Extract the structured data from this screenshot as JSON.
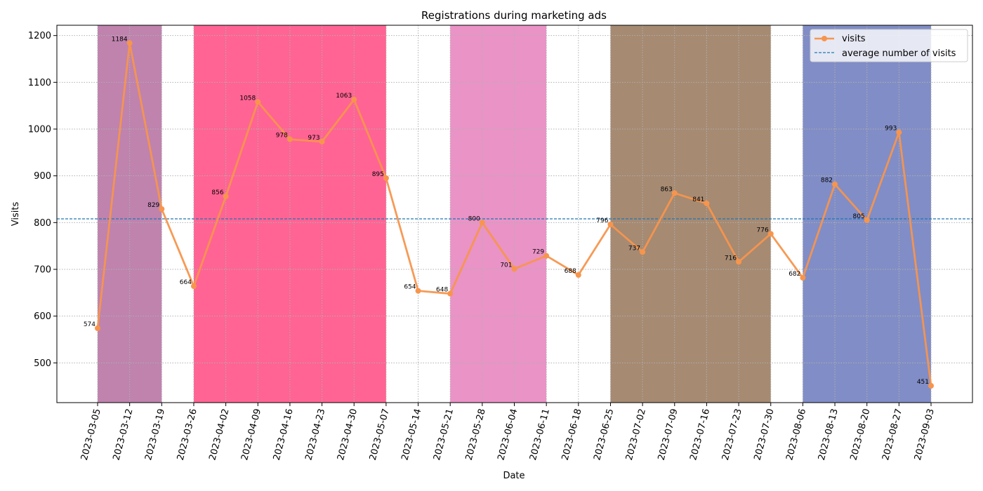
{
  "chart_data": {
    "type": "line",
    "title": "Registrations during marketing ads",
    "xlabel": "Date",
    "ylabel": "Visits",
    "x": [
      "2023-03-05",
      "2023-03-12",
      "2023-03-19",
      "2023-03-26",
      "2023-04-02",
      "2023-04-09",
      "2023-04-16",
      "2023-04-23",
      "2023-04-30",
      "2023-05-07",
      "2023-05-14",
      "2023-05-21",
      "2023-05-28",
      "2023-06-04",
      "2023-06-11",
      "2023-06-18",
      "2023-06-25",
      "2023-07-02",
      "2023-07-09",
      "2023-07-16",
      "2023-07-23",
      "2023-07-30",
      "2023-08-06",
      "2023-08-13",
      "2023-08-20",
      "2023-08-27",
      "2023-09-03"
    ],
    "series": [
      {
        "name": "visits",
        "color": "#f7954d",
        "values": [
          574,
          1184,
          829,
          664,
          856,
          1058,
          978,
          973,
          1063,
          895,
          654,
          648,
          800,
          701,
          729,
          688,
          796,
          737,
          863,
          841,
          716,
          776,
          682,
          882,
          805,
          993,
          451
        ]
      }
    ],
    "average": {
      "name": "average number of visits",
      "value": 808,
      "color": "#1f77b4"
    },
    "ylim": [
      415,
      1222
    ],
    "yticks": [
      500,
      600,
      700,
      800,
      900,
      1000,
      1100,
      1200
    ],
    "grid": true,
    "legend_position": "top-right",
    "shaded_spans": [
      {
        "start": "2023-03-05",
        "end": "2023-03-19",
        "color": "#bf83ae"
      },
      {
        "start": "2023-03-26",
        "end": "2023-05-07",
        "color": "#ff6494"
      },
      {
        "start": "2023-05-21",
        "end": "2023-06-11",
        "color": "#ea93c6"
      },
      {
        "start": "2023-06-25",
        "end": "2023-07-30",
        "color": "#a68a72"
      },
      {
        "start": "2023-08-06",
        "end": "2023-09-03",
        "color": "#818dc6"
      }
    ]
  }
}
